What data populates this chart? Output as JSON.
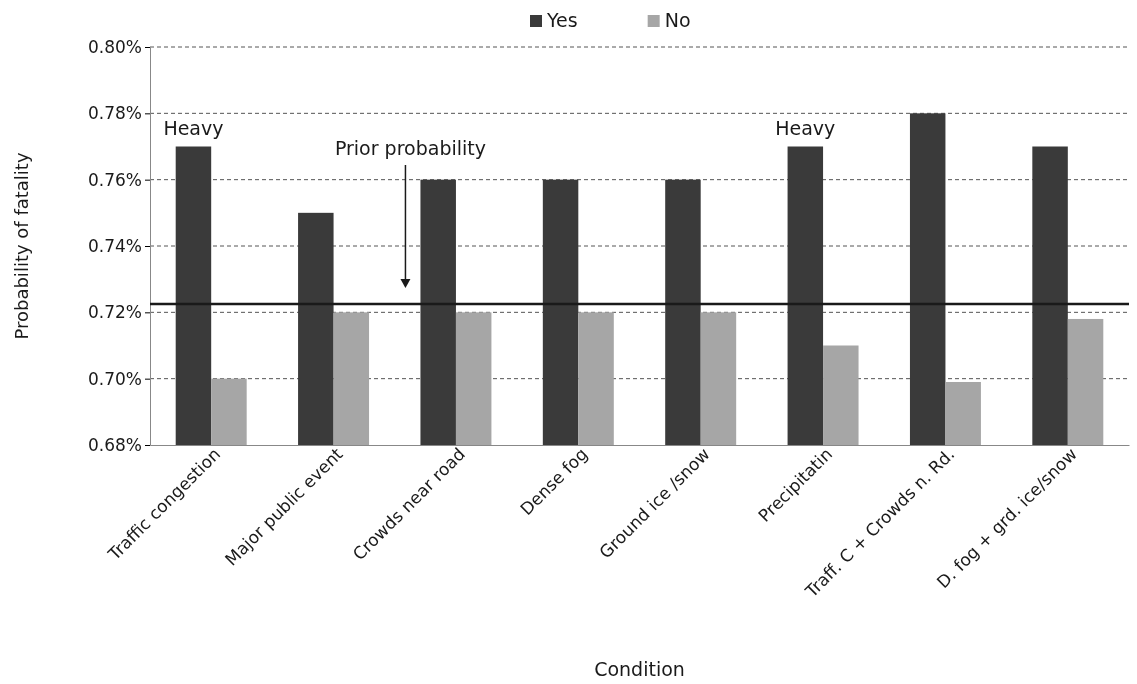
{
  "chart_data": {
    "type": "bar",
    "xlabel": "Condition",
    "ylabel": "Probability of fatality",
    "categories": [
      "Traffic congestion",
      "Major public event",
      "Crowds near road",
      "Dense fog",
      "Ground ice /snow",
      "Precipitatin",
      "Traff. C + Crowds n. Rd.",
      "D. fog + grd. ice/snow"
    ],
    "series": [
      {
        "name": "Yes",
        "color": "#3a3a3a",
        "values": [
          0.77,
          0.75,
          0.76,
          0.76,
          0.76,
          0.77,
          0.78,
          0.77
        ]
      },
      {
        "name": "No",
        "color": "#a6a6a6",
        "values": [
          0.7,
          0.72,
          0.72,
          0.72,
          0.72,
          0.71,
          0.699,
          0.718
        ]
      }
    ],
    "ylim": [
      0.68,
      0.8
    ],
    "yticks": [
      {
        "value": 0.68,
        "label": "0.68%"
      },
      {
        "value": 0.7,
        "label": "0.70%"
      },
      {
        "value": 0.72,
        "label": "0.72%"
      },
      {
        "value": 0.74,
        "label": "0.74%"
      },
      {
        "value": 0.76,
        "label": "0.76%"
      },
      {
        "value": 0.78,
        "label": "0.78%"
      },
      {
        "value": 0.8,
        "label": "0.80%"
      }
    ],
    "grid": "y",
    "legend": "top",
    "ref_lines": [
      {
        "axis": "y",
        "value": 0.7225,
        "color": "#1a1a1a"
      }
    ],
    "annotations": [
      "Prior probability",
      "Heavy",
      "Heavy"
    ]
  }
}
